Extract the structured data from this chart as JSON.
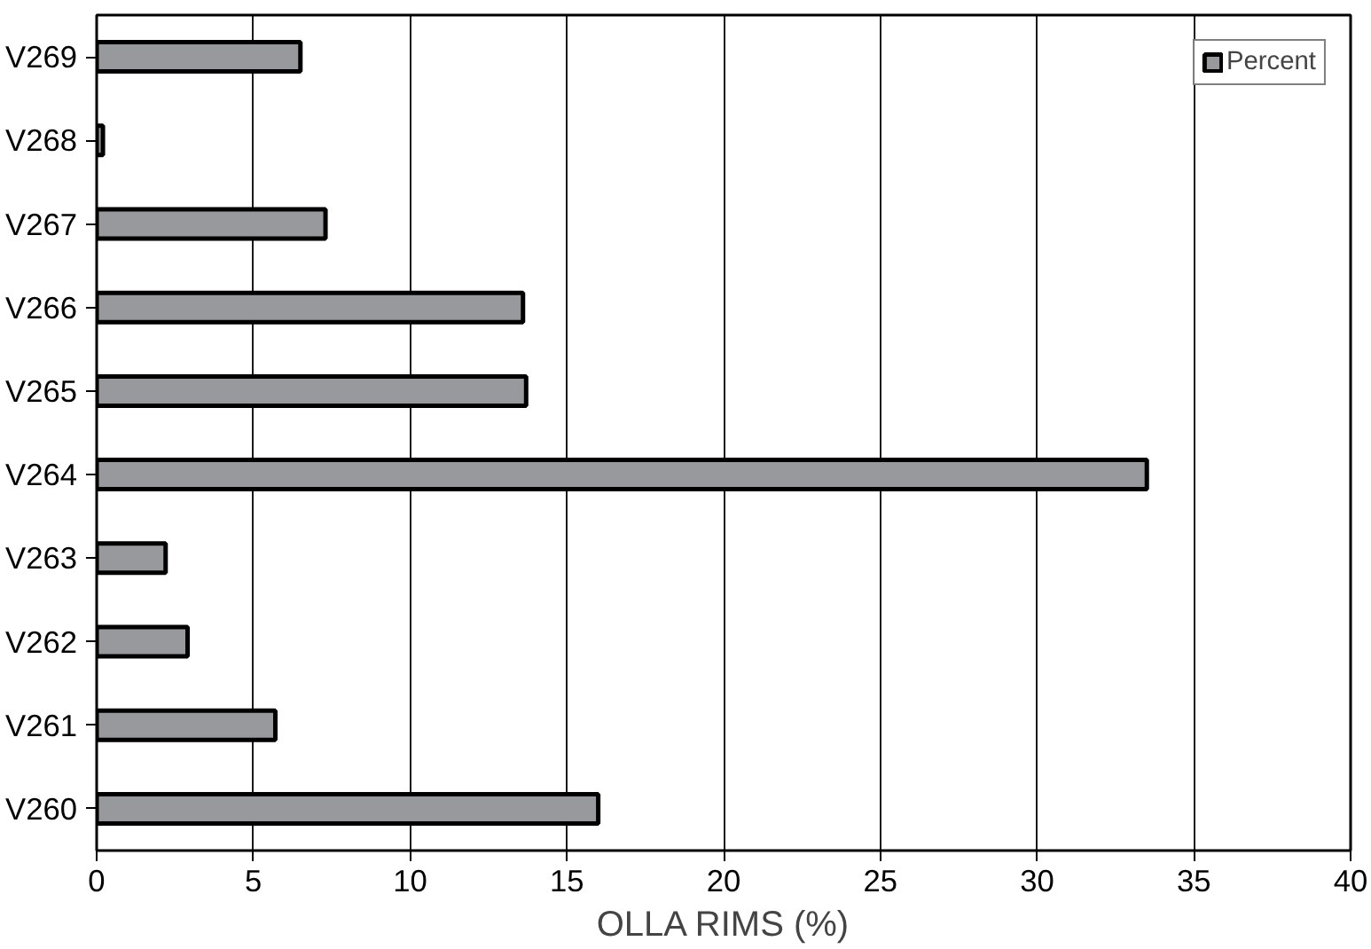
{
  "chart_data": {
    "type": "bar",
    "orientation": "horizontal",
    "xlabel": "OLLA RIMS (%)",
    "categories": [
      "V269",
      "V268",
      "V267",
      "V266",
      "V265",
      "V264",
      "V263",
      "V262",
      "V261",
      "V260"
    ],
    "series": [
      {
        "name": "Percent",
        "color": "#98999c",
        "values": [
          6.5,
          0.2,
          7.3,
          13.6,
          13.7,
          33.5,
          2.2,
          2.9,
          5.7,
          16.0
        ]
      }
    ],
    "xlim": [
      0,
      40
    ],
    "xticks": [
      0,
      5,
      10,
      15,
      20,
      25,
      30,
      35,
      40
    ],
    "grid": "x",
    "legend": "top right"
  }
}
